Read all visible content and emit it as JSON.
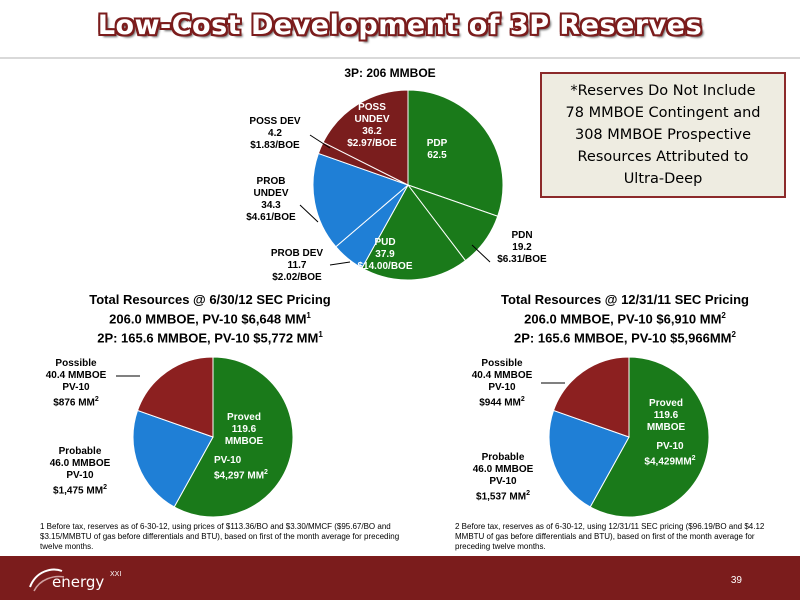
{
  "title": "Low-Cost Development of 3P Reserves",
  "note_box": [
    "*Reserves Do Not Include",
    "78 MMBOE Contingent and",
    "308 MMBOE Prospective",
    "Resources Attributed to",
    "Ultra-Deep"
  ],
  "colors": {
    "green": "#1a7a1a",
    "blue": "#1f7fd6",
    "maroon": "#7a1d1d",
    "darkred": "#8c2020",
    "accent": "#7b1c1c"
  },
  "chart_data": [
    {
      "type": "pie",
      "title": "3P: 206 MMBOE",
      "slices": [
        {
          "name": "PDP",
          "value": 62.5,
          "label_lines": [
            "PDP",
            "62.5"
          ]
        },
        {
          "name": "PDN",
          "value": 19.2,
          "label_lines": [
            "PDN",
            "19.2",
            "$6.31/BOE"
          ]
        },
        {
          "name": "PUD",
          "value": 37.9,
          "label_lines": [
            "PUD",
            "37.9",
            "$14.00/BOE"
          ]
        },
        {
          "name": "PROB DEV",
          "value": 11.7,
          "label_lines": [
            "PROB DEV",
            "11.7",
            "$2.02/BOE"
          ]
        },
        {
          "name": "PROB UNDEV",
          "value": 34.3,
          "label_lines": [
            "PROB",
            "UNDEV",
            "34.3",
            "$4.61/BOE"
          ]
        },
        {
          "name": "POSS DEV",
          "value": 4.2,
          "label_lines": [
            "POSS DEV",
            "4.2",
            "$1.83/BOE"
          ]
        },
        {
          "name": "POSS UNDEV",
          "value": 36.2,
          "label_lines": [
            "POSS",
            "UNDEV",
            "36.2",
            "$2.97/BOE"
          ]
        }
      ]
    },
    {
      "type": "pie",
      "title_lines": [
        "Total Resources @ 6/30/12 SEC Pricing",
        "206.0 MMBOE, PV-10 $6,648 MM",
        "2P: 165.6 MMBOE, PV-10 $5,772 MM"
      ],
      "title_sup": [
        "",
        "1",
        "1"
      ],
      "slices": [
        {
          "name": "Proved",
          "value": 119.6,
          "label_lines": [
            "Proved",
            "119.6",
            "MMBOE"
          ],
          "pv_lines": [
            "PV-10",
            "$4,297 MM"
          ],
          "pv_sup": "2"
        },
        {
          "name": "Probable",
          "value": 46.0,
          "label_lines": [
            "Probable",
            "46.0 MMBOE",
            "PV-10",
            "$1,475 MM"
          ],
          "label_sup": "2"
        },
        {
          "name": "Possible",
          "value": 40.4,
          "label_lines": [
            "Possible",
            "40.4 MMBOE",
            "PV-10",
            "$876 MM"
          ],
          "label_sup": "2"
        }
      ]
    },
    {
      "type": "pie",
      "title_lines": [
        "Total Resources @  12/31/11 SEC Pricing",
        "206.0 MMBOE, PV-10 $6,910 MM",
        "2P: 165.6 MMBOE, PV-10 $5,966MM"
      ],
      "title_sup": [
        "",
        "2",
        "2"
      ],
      "slices": [
        {
          "name": "Proved",
          "value": 119.6,
          "label_lines": [
            "Proved",
            "119.6",
            "MMBOE"
          ],
          "pv_lines": [
            "PV-10",
            "$4,429MM"
          ],
          "pv_sup": "2"
        },
        {
          "name": "Probable",
          "value": 46.0,
          "label_lines": [
            "Probable",
            "46.0 MMBOE",
            "PV-10",
            "$1,537 MM"
          ],
          "label_sup": "2"
        },
        {
          "name": "Possible",
          "value": 40.4,
          "label_lines": [
            "Possible",
            "40.4 MMBOE",
            "PV-10",
            "$944 MM"
          ],
          "label_sup": "2"
        }
      ]
    }
  ],
  "footnotes": {
    "left": "1 Before tax, reserves as of 6-30-12, using prices of $113.36/BO and $3.30/MMCF ($95.67/BO and $3.15/MMBTU of gas before differentials and BTU), based on first of the month average for preceding twelve months.",
    "right": "2 Before tax, reserves as of 6-30-12, using 12/31/11 SEC pricing ($96.19/BO and $4.12 MMBTU of gas before differentials and BTU), based on first of the month average for preceding twelve months."
  },
  "footer": {
    "logo_text": "energy",
    "logo_sup": "XXI",
    "page_number": "39"
  }
}
